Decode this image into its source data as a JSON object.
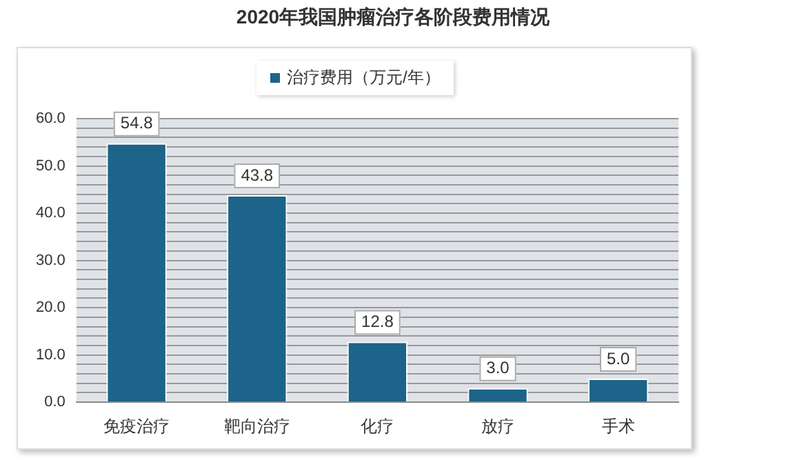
{
  "chart_data": {
    "type": "bar",
    "title": "2020年我国肿瘤治疗各阶段费用情况",
    "categories": [
      "免疫治疗",
      "靶向治疗",
      "化疗",
      "放疗",
      "手术"
    ],
    "series": [
      {
        "name": "治疗费用（万元/年）",
        "color": "#1c6489",
        "values": [
          54.8,
          43.8,
          12.8,
          3.0,
          5.0
        ]
      }
    ],
    "value_labels": [
      "54.8",
      "43.8",
      "12.8",
      "3.0",
      "5.0"
    ],
    "ylim": [
      0,
      60
    ],
    "yticks": [
      {
        "value": 0,
        "label": "0.0"
      },
      {
        "value": 2,
        "label": null
      },
      {
        "value": 4,
        "label": null
      },
      {
        "value": 6,
        "label": null
      },
      {
        "value": 8,
        "label": null
      },
      {
        "value": 10,
        "label": "10.0"
      },
      {
        "value": 12,
        "label": null
      },
      {
        "value": 14,
        "label": null
      },
      {
        "value": 16,
        "label": null
      },
      {
        "value": 18,
        "label": null
      },
      {
        "value": 20,
        "label": "20.0"
      },
      {
        "value": 22,
        "label": null
      },
      {
        "value": 24,
        "label": null
      },
      {
        "value": 26,
        "label": null
      },
      {
        "value": 28,
        "label": null
      },
      {
        "value": 30,
        "label": "30.0"
      },
      {
        "value": 32,
        "label": null
      },
      {
        "value": 34,
        "label": null
      },
      {
        "value": 36,
        "label": null
      },
      {
        "value": 38,
        "label": null
      },
      {
        "value": 40,
        "label": "40.0"
      },
      {
        "value": 42,
        "label": null
      },
      {
        "value": 44,
        "label": null
      },
      {
        "value": 46,
        "label": null
      },
      {
        "value": 48,
        "label": null
      },
      {
        "value": 50,
        "label": "50.0"
      },
      {
        "value": 52,
        "label": null
      },
      {
        "value": 54,
        "label": null
      },
      {
        "value": 56,
        "label": null
      },
      {
        "value": 58,
        "label": null
      },
      {
        "value": 60,
        "label": "60.0"
      }
    ],
    "grid": "y",
    "legend": "top"
  }
}
